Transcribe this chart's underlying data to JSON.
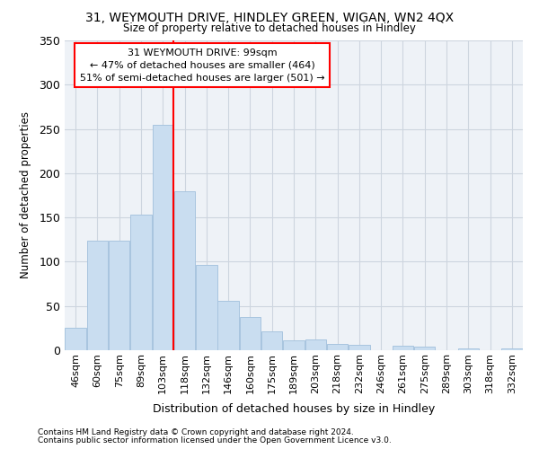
{
  "title1": "31, WEYMOUTH DRIVE, HINDLEY GREEN, WIGAN, WN2 4QX",
  "title2": "Size of property relative to detached houses in Hindley",
  "xlabel": "Distribution of detached houses by size in Hindley",
  "ylabel": "Number of detached properties",
  "categories": [
    "46sqm",
    "60sqm",
    "75sqm",
    "89sqm",
    "103sqm",
    "118sqm",
    "132sqm",
    "146sqm",
    "160sqm",
    "175sqm",
    "189sqm",
    "203sqm",
    "218sqm",
    "232sqm",
    "246sqm",
    "261sqm",
    "275sqm",
    "289sqm",
    "303sqm",
    "318sqm",
    "332sqm"
  ],
  "values": [
    25,
    124,
    124,
    153,
    255,
    180,
    96,
    56,
    38,
    21,
    11,
    12,
    7,
    6,
    0,
    5,
    4,
    0,
    2,
    0,
    2
  ],
  "bar_color": "#c9ddf0",
  "bar_edge_color": "#a8c4df",
  "red_line_index": 4,
  "annotation_line1": "31 WEYMOUTH DRIVE: 99sqm",
  "annotation_line2": "← 47% of detached houses are smaller (464)",
  "annotation_line3": "51% of semi-detached houses are larger (501) →",
  "ylim": [
    0,
    350
  ],
  "yticks": [
    0,
    50,
    100,
    150,
    200,
    250,
    300,
    350
  ],
  "footer1": "Contains HM Land Registry data © Crown copyright and database right 2024.",
  "footer2": "Contains public sector information licensed under the Open Government Licence v3.0.",
  "bg_color": "#eef2f7",
  "fig_color": "#ffffff",
  "grid_color": "#cdd5df"
}
